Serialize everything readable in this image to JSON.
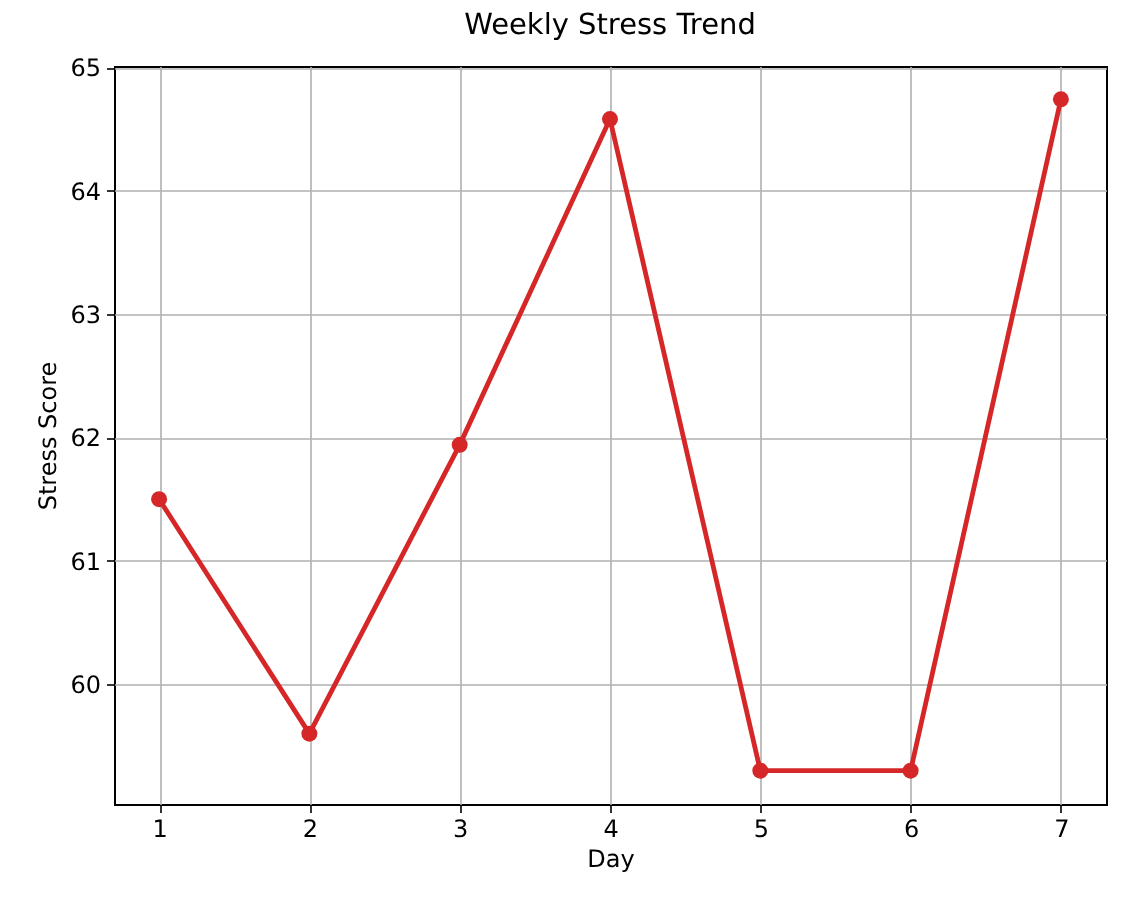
{
  "chart_data": {
    "type": "line",
    "title": "Weekly Stress Trend",
    "xlabel": "Day",
    "ylabel": "Stress Score",
    "x": [
      1,
      2,
      3,
      4,
      5,
      6,
      7
    ],
    "series": [
      {
        "color": "#d62728",
        "values": [
          61.5,
          59.6,
          61.94,
          64.58,
          59.3,
          59.3,
          64.74
        ]
      }
    ],
    "xlim": [
      0.7,
      7.3
    ],
    "ylim": [
      59.03,
      65.01
    ],
    "xticks": [
      1,
      2,
      3,
      4,
      5,
      6,
      7
    ],
    "yticks": [
      60,
      61,
      62,
      63,
      64,
      65
    ],
    "grid": true,
    "marker": "circle",
    "line_style": "solid"
  }
}
